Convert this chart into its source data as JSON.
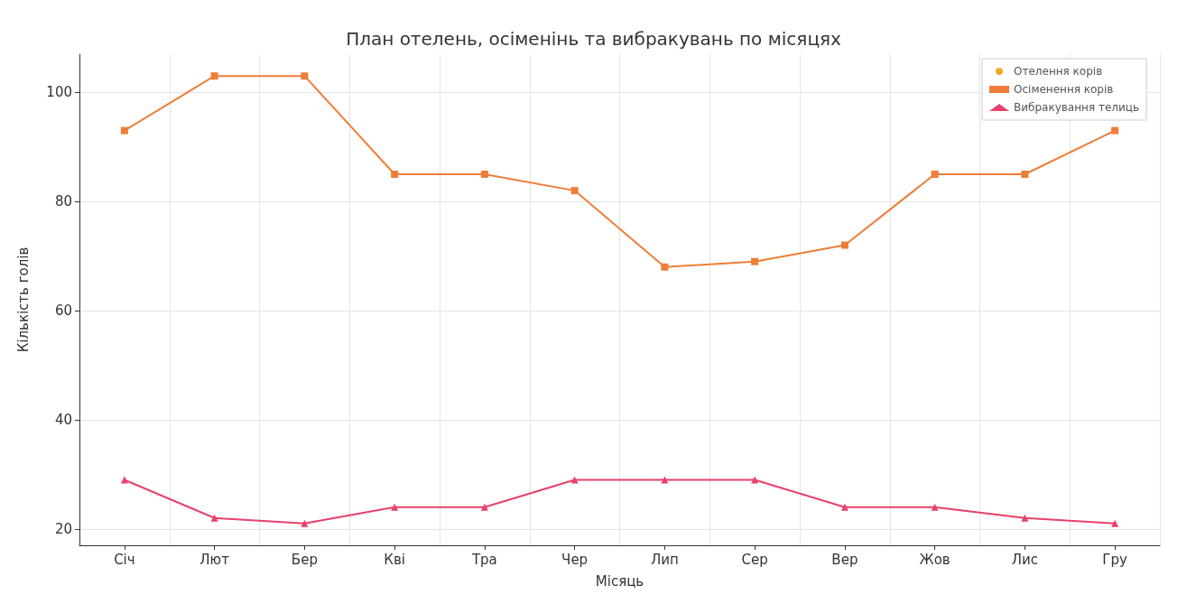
{
  "chart_data": {
    "type": "line",
    "title": "План отелень, осіменінь та вибракувань по місяцях",
    "xlabel": "Місяць",
    "ylabel": "Кількість голів",
    "categories": [
      "Січ",
      "Лют",
      "Бер",
      "Кві",
      "Тра",
      "Чер",
      "Лип",
      "Сер",
      "Вер",
      "Жов",
      "Лис",
      "Гру"
    ],
    "series": [
      {
        "name": "Отелення корів",
        "color": "#f5a623",
        "marker": "circle",
        "values": [
          null,
          null,
          null,
          null,
          null,
          null,
          null,
          null,
          null,
          null,
          null,
          null
        ]
      },
      {
        "name": "Осіменення корів",
        "color": "#ee7d37",
        "marker": "square",
        "values": [
          93,
          103,
          103,
          85,
          85,
          82,
          68,
          69,
          72,
          85,
          85,
          93
        ]
      },
      {
        "name": "Вибракування телиць",
        "color": "#e8416b",
        "marker": "triangle",
        "values": [
          29,
          22,
          21,
          24,
          24,
          29,
          29,
          29,
          24,
          24,
          22,
          21
        ]
      }
    ],
    "ylim": [
      17,
      107
    ],
    "yticks": [
      20,
      40,
      60,
      80,
      100
    ],
    "grid": true,
    "legend": "top right"
  }
}
